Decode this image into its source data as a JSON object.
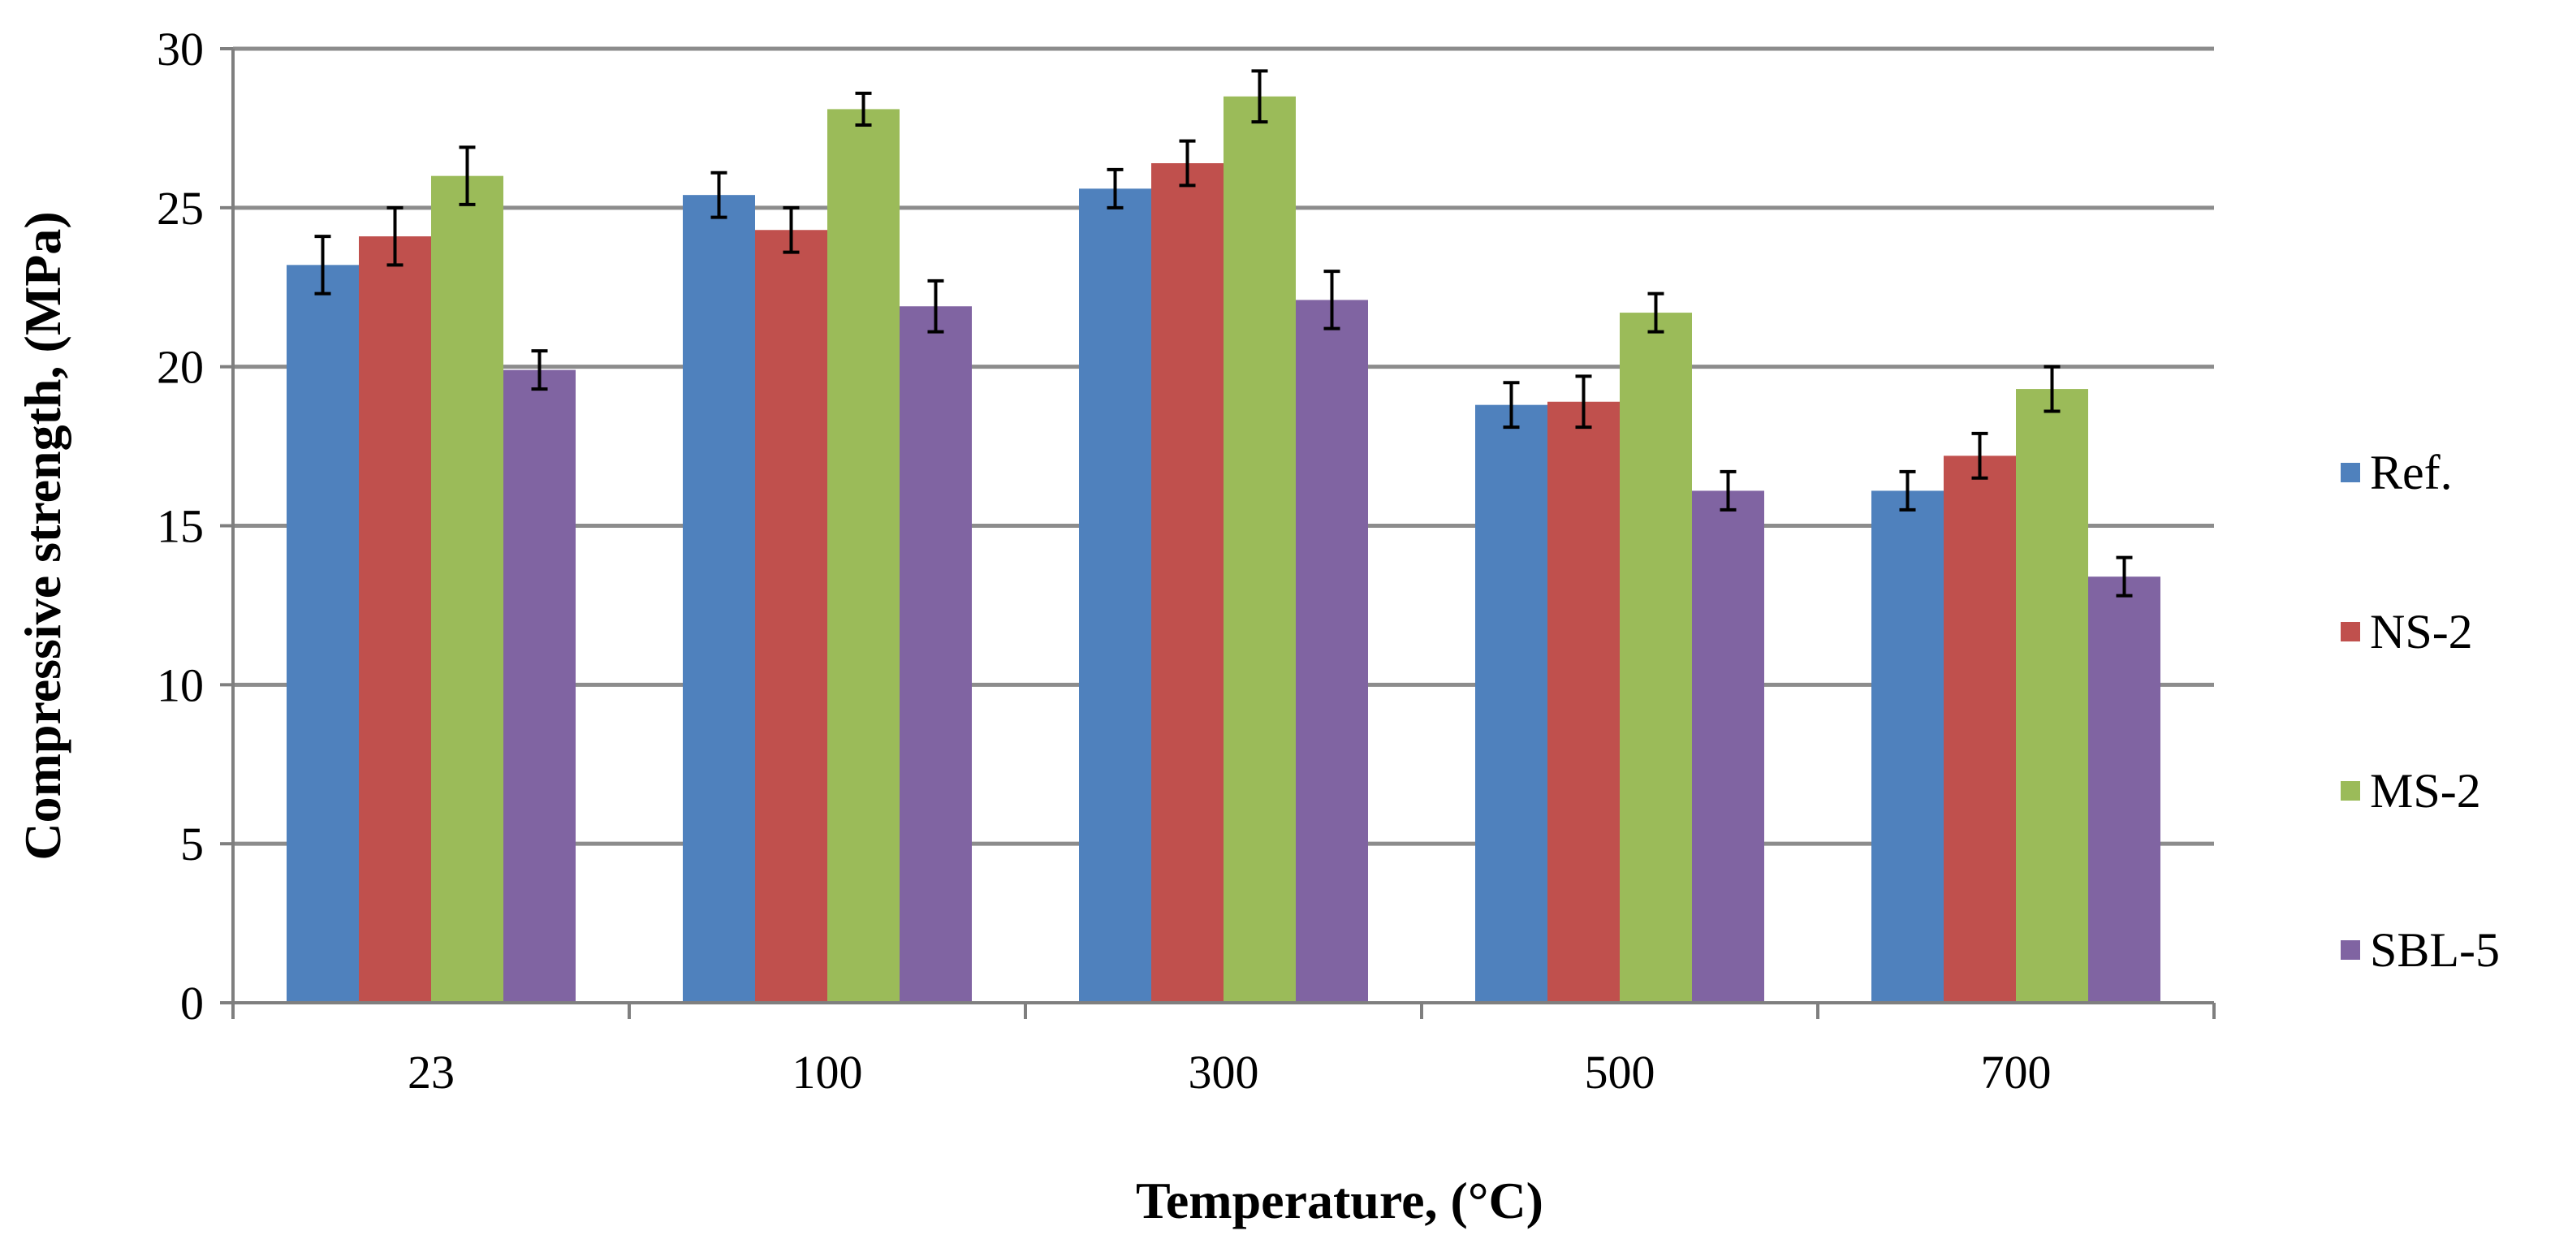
{
  "chart_data": {
    "type": "bar",
    "title": "",
    "xlabel": "Temperature, (°C)",
    "ylabel": "Compressive  strength, (MPa)",
    "ylim": [
      0,
      30
    ],
    "ytick_step": 5,
    "ytick_labels": [
      "0",
      "5",
      "10",
      "15",
      "20",
      "25",
      "30"
    ],
    "grid": true,
    "legend_position": "right",
    "categories": [
      "23",
      "100",
      "300",
      "500",
      "700"
    ],
    "series": [
      {
        "name": "Ref.",
        "color": "#4F81BD",
        "values": [
          23.2,
          25.4,
          25.6,
          18.8,
          16.1
        ],
        "errors": [
          0.9,
          0.7,
          0.6,
          0.7,
          0.6
        ]
      },
      {
        "name": "NS-2",
        "color": "#C0504D",
        "values": [
          24.1,
          24.3,
          26.4,
          18.9,
          17.2
        ],
        "errors": [
          0.9,
          0.7,
          0.7,
          0.8,
          0.7
        ]
      },
      {
        "name": "MS-2",
        "color": "#9BBB59",
        "values": [
          26.0,
          28.1,
          28.5,
          21.7,
          19.3
        ],
        "errors": [
          0.9,
          0.5,
          0.8,
          0.6,
          0.7
        ]
      },
      {
        "name": "SBL-5",
        "color": "#8064A2",
        "values": [
          19.9,
          21.9,
          22.1,
          16.1,
          13.4
        ],
        "errors": [
          0.6,
          0.8,
          0.9,
          0.6,
          0.6
        ]
      }
    ]
  }
}
